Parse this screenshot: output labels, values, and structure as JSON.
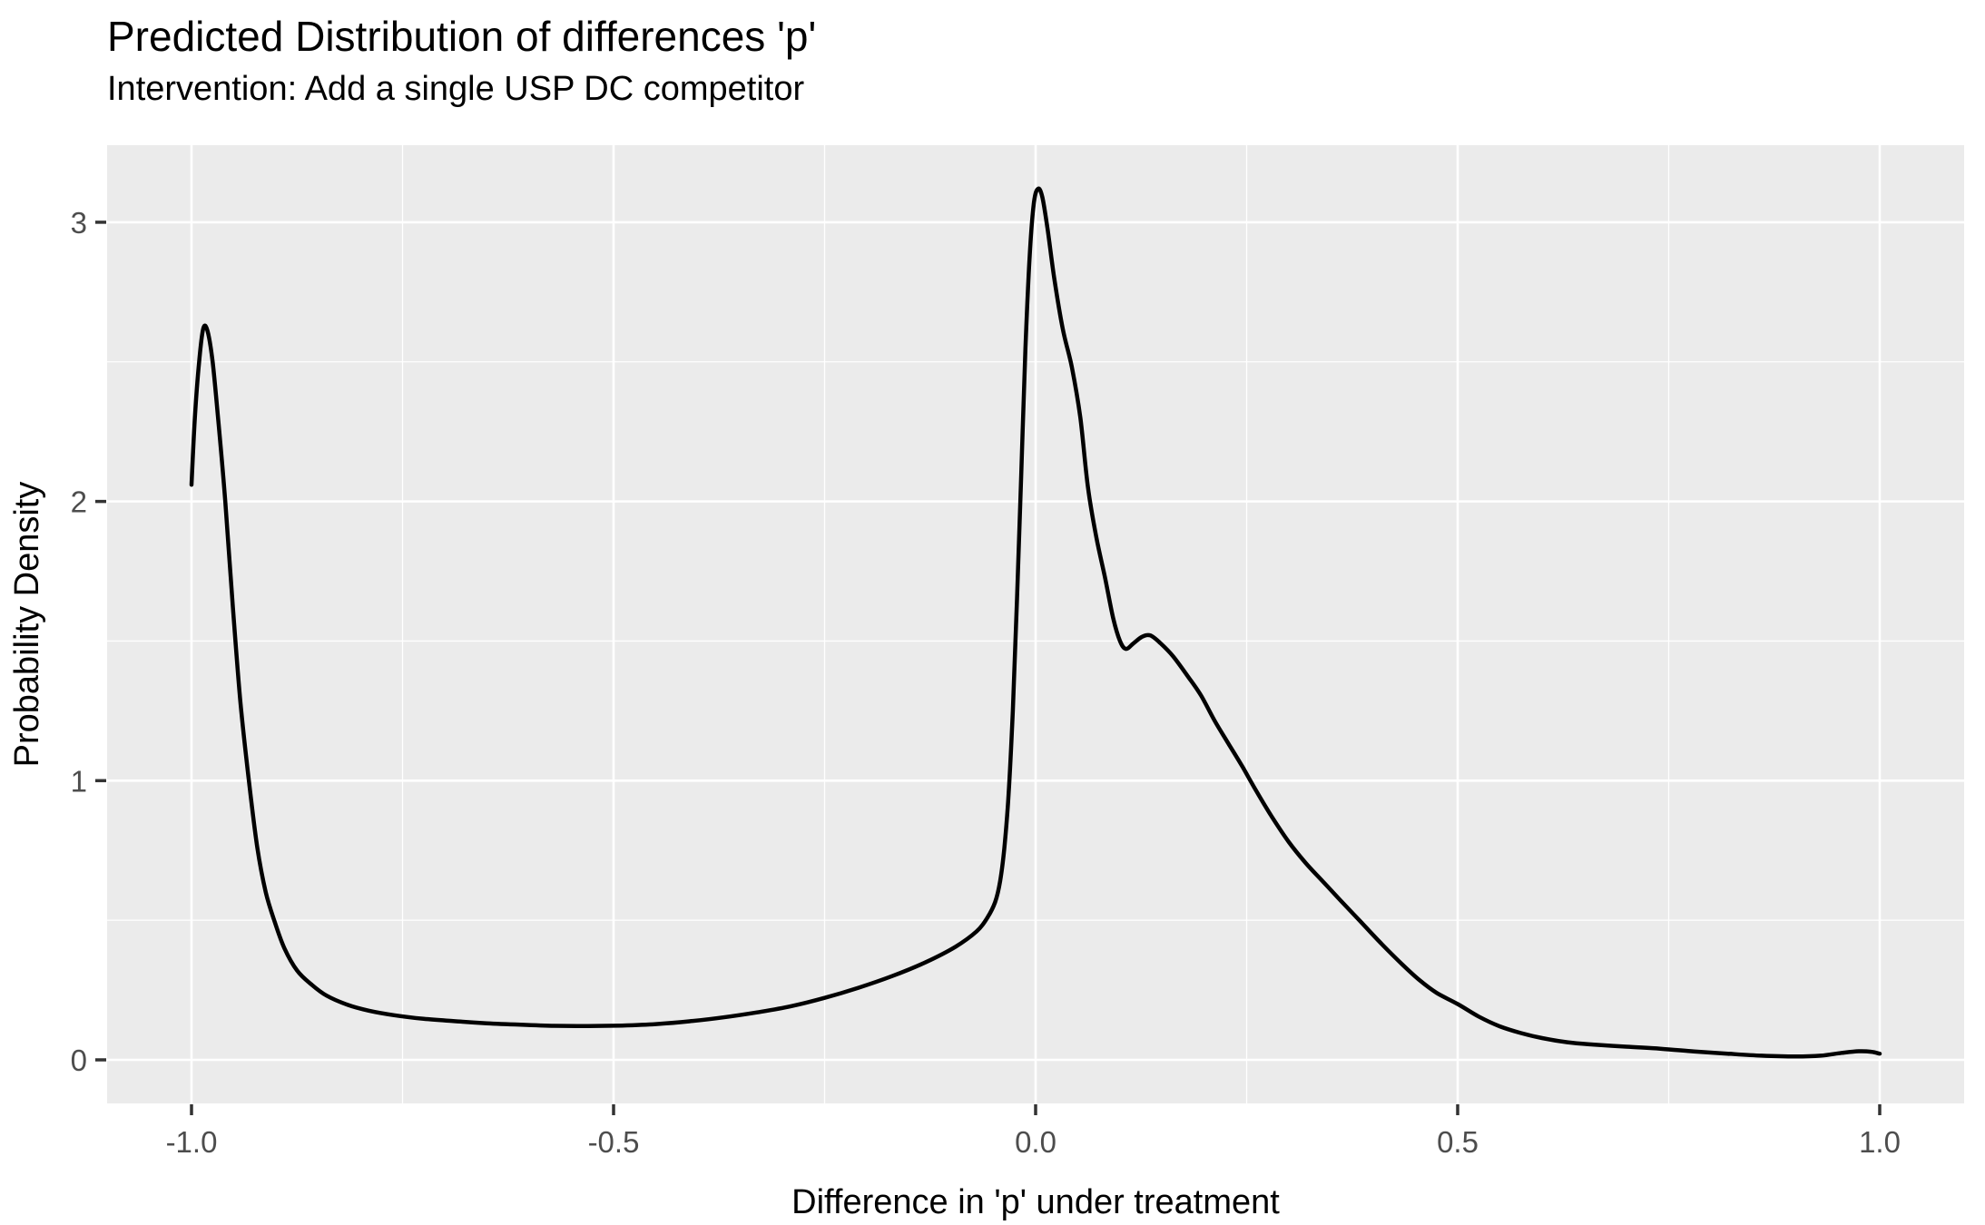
{
  "header": {
    "title": "Predicted Distribution of differences 'p'",
    "subtitle": "Intervention: Add a single USP DC competitor"
  },
  "colors": {
    "panel_background": "#EBEBEB",
    "grid_line": "#FFFFFF",
    "curve": "#000000",
    "tick_mark": "#333333",
    "tick_text": "#4D4D4D",
    "title_text": "#000000"
  },
  "chart_data": {
    "type": "line",
    "subtype": "density",
    "title": "Predicted Distribution of differences 'p'",
    "subtitle": "Intervention: Add a single USP DC competitor",
    "xlabel": "Difference in 'p' under treatment",
    "ylabel": "Probability Density",
    "xlim": [
      -1.1,
      1.1
    ],
    "ylim": [
      -0.156,
      3.276
    ],
    "x_ticks": [
      -1.0,
      -0.5,
      0.0,
      0.5,
      1.0
    ],
    "x_tick_labels": [
      "-1.0",
      "-0.5",
      "0.0",
      "0.5",
      "1.0"
    ],
    "x_minor_breaks": [
      -0.75,
      -0.25,
      0.25,
      0.75
    ],
    "y_ticks": [
      0,
      1,
      2,
      3
    ],
    "y_tick_labels": [
      "0",
      "1",
      "2",
      "3"
    ],
    "y_minor_breaks": [
      0.5,
      1.5,
      2.5
    ],
    "grid": true,
    "legend": "none",
    "series": [
      {
        "name": "density",
        "points": [
          [
            -1.0,
            2.06
          ],
          [
            -0.996,
            2.3
          ],
          [
            -0.991,
            2.5
          ],
          [
            -0.986,
            2.62
          ],
          [
            -0.981,
            2.61
          ],
          [
            -0.975,
            2.5
          ],
          [
            -0.968,
            2.28
          ],
          [
            -0.96,
            2.0
          ],
          [
            -0.951,
            1.62
          ],
          [
            -0.942,
            1.28
          ],
          [
            -0.932,
            1.0
          ],
          [
            -0.922,
            0.76
          ],
          [
            -0.912,
            0.6
          ],
          [
            -0.901,
            0.49
          ],
          [
            -0.89,
            0.4
          ],
          [
            -0.875,
            0.32
          ],
          [
            -0.858,
            0.27
          ],
          [
            -0.84,
            0.23
          ],
          [
            -0.815,
            0.197
          ],
          [
            -0.79,
            0.176
          ],
          [
            -0.76,
            0.16
          ],
          [
            -0.725,
            0.147
          ],
          [
            -0.69,
            0.139
          ],
          [
            -0.65,
            0.131
          ],
          [
            -0.61,
            0.126
          ],
          [
            -0.57,
            0.122
          ],
          [
            -0.53,
            0.121
          ],
          [
            -0.49,
            0.123
          ],
          [
            -0.45,
            0.128
          ],
          [
            -0.41,
            0.138
          ],
          [
            -0.37,
            0.152
          ],
          [
            -0.33,
            0.17
          ],
          [
            -0.29,
            0.192
          ],
          [
            -0.25,
            0.222
          ],
          [
            -0.21,
            0.258
          ],
          [
            -0.17,
            0.3
          ],
          [
            -0.13,
            0.35
          ],
          [
            -0.095,
            0.405
          ],
          [
            -0.07,
            0.46
          ],
          [
            -0.057,
            0.51
          ],
          [
            -0.048,
            0.565
          ],
          [
            -0.042,
            0.64
          ],
          [
            -0.037,
            0.76
          ],
          [
            -0.032,
            0.95
          ],
          [
            -0.027,
            1.25
          ],
          [
            -0.022,
            1.65
          ],
          [
            -0.017,
            2.1
          ],
          [
            -0.012,
            2.55
          ],
          [
            -0.007,
            2.88
          ],
          [
            -0.002,
            3.07
          ],
          [
            0.003,
            3.12
          ],
          [
            0.008,
            3.09
          ],
          [
            0.014,
            2.98
          ],
          [
            0.022,
            2.8
          ],
          [
            0.032,
            2.62
          ],
          [
            0.043,
            2.48
          ],
          [
            0.053,
            2.3
          ],
          [
            0.062,
            2.05
          ],
          [
            0.072,
            1.87
          ],
          [
            0.082,
            1.73
          ],
          [
            0.092,
            1.58
          ],
          [
            0.1,
            1.5
          ],
          [
            0.107,
            1.472
          ],
          [
            0.116,
            1.492
          ],
          [
            0.126,
            1.515
          ],
          [
            0.136,
            1.52
          ],
          [
            0.148,
            1.492
          ],
          [
            0.163,
            1.445
          ],
          [
            0.18,
            1.375
          ],
          [
            0.196,
            1.305
          ],
          [
            0.212,
            1.215
          ],
          [
            0.228,
            1.135
          ],
          [
            0.245,
            1.05
          ],
          [
            0.262,
            0.96
          ],
          [
            0.28,
            0.87
          ],
          [
            0.3,
            0.78
          ],
          [
            0.32,
            0.705
          ],
          [
            0.34,
            0.64
          ],
          [
            0.36,
            0.575
          ],
          [
            0.385,
            0.495
          ],
          [
            0.41,
            0.415
          ],
          [
            0.435,
            0.34
          ],
          [
            0.455,
            0.285
          ],
          [
            0.475,
            0.24
          ],
          [
            0.5,
            0.2
          ],
          [
            0.525,
            0.155
          ],
          [
            0.55,
            0.12
          ],
          [
            0.575,
            0.096
          ],
          [
            0.6,
            0.078
          ],
          [
            0.63,
            0.063
          ],
          [
            0.66,
            0.055
          ],
          [
            0.7,
            0.047
          ],
          [
            0.74,
            0.04
          ],
          [
            0.78,
            0.03
          ],
          [
            0.82,
            0.022
          ],
          [
            0.86,
            0.015
          ],
          [
            0.9,
            0.012
          ],
          [
            0.93,
            0.015
          ],
          [
            0.955,
            0.025
          ],
          [
            0.975,
            0.031
          ],
          [
            0.99,
            0.029
          ],
          [
            1.0,
            0.022
          ]
        ]
      }
    ]
  }
}
